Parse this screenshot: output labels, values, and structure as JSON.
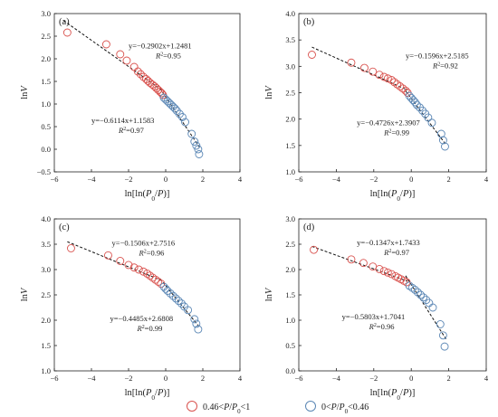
{
  "chart_data": [
    {
      "type": "scatter",
      "panel_label": "(a)",
      "xlabel_parts": [
        "ln[ln(",
        "P",
        "0",
        "/",
        "P",
        ")]"
      ],
      "ylabel_parts": [
        "ln",
        "V"
      ],
      "xlim": [
        -6,
        4
      ],
      "ylim": [
        -0.5,
        3.0
      ],
      "xticks": [
        -6,
        -4,
        -2,
        0,
        2,
        4
      ],
      "xtick_labels": [
        "−6",
        "−4",
        "−2",
        "0",
        "2",
        "4"
      ],
      "yticks": [
        -0.5,
        0.0,
        0.5,
        1.0,
        1.5,
        2.0,
        2.5,
        3.0
      ],
      "ytick_labels": [
        "−0.5",
        "0.0",
        "0.5",
        "1.0",
        "1.5",
        "2.0",
        "2.5",
        "3.0"
      ],
      "series": [
        {
          "name": "0.46<P/P0<1",
          "color": "#d9534f",
          "x": [
            -5.3,
            -3.2,
            -2.45,
            -2.1,
            -1.7,
            -1.5,
            -1.35,
            -1.2,
            -1.05,
            -0.95,
            -0.85,
            -0.72,
            -0.6,
            -0.5,
            -0.4,
            -0.3,
            -0.22,
            -0.15
          ],
          "y": [
            2.58,
            2.32,
            2.1,
            1.96,
            1.82,
            1.72,
            1.66,
            1.6,
            1.55,
            1.51,
            1.47,
            1.43,
            1.39,
            1.35,
            1.31,
            1.27,
            1.24,
            1.2
          ]
        },
        {
          "name": "0<P/P0<0.46",
          "color": "#5b87b5",
          "x": [
            -0.1,
            0.0,
            0.1,
            0.2,
            0.3,
            0.4,
            0.5,
            0.6,
            0.75,
            0.9,
            1.05,
            1.4,
            1.55,
            1.65,
            1.75,
            1.8
          ],
          "y": [
            1.14,
            1.1,
            1.06,
            1.02,
            0.98,
            0.94,
            0.9,
            0.85,
            0.78,
            0.71,
            0.6,
            0.34,
            0.17,
            0.08,
            0.0,
            -0.11
          ]
        }
      ],
      "fit_lines": [
        {
          "slope": -0.2902,
          "intercept": 1.2481,
          "x_range": [
            -5.5,
            -0.2
          ]
        },
        {
          "slope": -0.6114,
          "intercept": 1.1583,
          "x_range": [
            -0.3,
            1.82
          ]
        }
      ],
      "annotations": [
        {
          "eq": "y=−0.2902x+1.2481",
          "r2": "=0.95",
          "pos": [
            -2.0,
            2.23
          ]
        },
        {
          "eq": "y=−0.6114x+1.1583",
          "r2": "=0.97",
          "pos": [
            -4.0,
            0.58
          ]
        }
      ]
    },
    {
      "type": "scatter",
      "panel_label": "(b)",
      "xlabel_parts": [
        "ln[ln(",
        "P",
        "0",
        "/",
        "P",
        ")]"
      ],
      "ylabel_parts": [
        "ln",
        "V"
      ],
      "xlim": [
        -6,
        4
      ],
      "ylim": [
        1.0,
        4.0
      ],
      "xticks": [
        -6,
        -4,
        -2,
        0,
        2,
        4
      ],
      "xtick_labels": [
        "−6",
        "−4",
        "−2",
        "0",
        "2",
        "4"
      ],
      "yticks": [
        1.0,
        1.5,
        2.0,
        2.5,
        3.0,
        3.5,
        4.0
      ],
      "ytick_labels": [
        "1.0",
        "1.5",
        "2.0",
        "2.5",
        "3.0",
        "3.5",
        "4.0"
      ],
      "series": [
        {
          "name": "0.46<P/P0<1",
          "color": "#d9534f",
          "x": [
            -5.3,
            -3.2,
            -2.5,
            -2.05,
            -1.7,
            -1.45,
            -1.25,
            -1.05,
            -0.9,
            -0.75,
            -0.6,
            -0.45,
            -0.3,
            -0.2
          ],
          "y": [
            3.22,
            3.07,
            2.97,
            2.9,
            2.84,
            2.8,
            2.77,
            2.74,
            2.7,
            2.66,
            2.62,
            2.58,
            2.54,
            2.5
          ]
        },
        {
          "name": "0<P/P0<0.46",
          "color": "#5b87b5",
          "x": [
            -0.1,
            0.0,
            0.1,
            0.2,
            0.3,
            0.45,
            0.6,
            0.75,
            0.9,
            1.1,
            1.6,
            1.7,
            1.8
          ],
          "y": [
            2.44,
            2.4,
            2.36,
            2.32,
            2.27,
            2.22,
            2.16,
            2.1,
            2.03,
            1.93,
            1.72,
            1.6,
            1.48
          ]
        }
      ],
      "fit_lines": [
        {
          "slope": -0.1596,
          "intercept": 2.5185,
          "x_range": [
            -5.3,
            -0.2
          ]
        },
        {
          "slope": -0.4726,
          "intercept": 2.3907,
          "x_range": [
            -0.3,
            1.85
          ]
        }
      ],
      "annotations": [
        {
          "eq": "y=−0.1596x+2.5185",
          "r2": "=0.92",
          "pos": [
            -0.3,
            3.15
          ]
        },
        {
          "eq": "y=−0.4726x+2.3907",
          "r2": "=0.99",
          "pos": [
            -2.9,
            1.88
          ]
        }
      ]
    },
    {
      "type": "scatter",
      "panel_label": "(c)",
      "xlabel_parts": [
        "ln[ln(",
        "P",
        "0",
        "/",
        "P",
        ")]"
      ],
      "ylabel_parts": [
        "ln",
        "V"
      ],
      "xlim": [
        -6,
        4
      ],
      "ylim": [
        1.0,
        4.0
      ],
      "xticks": [
        -6,
        -4,
        -2,
        0,
        2,
        4
      ],
      "xtick_labels": [
        "−6",
        "−4",
        "−2",
        "0",
        "2",
        "4"
      ],
      "yticks": [
        1.0,
        1.5,
        2.0,
        2.5,
        3.0,
        3.5,
        4.0
      ],
      "ytick_labels": [
        "1.0",
        "1.5",
        "2.0",
        "2.5",
        "3.0",
        "3.5",
        "4.0"
      ],
      "series": [
        {
          "name": "0.46<P/P0<1",
          "color": "#d9534f",
          "x": [
            -5.1,
            -3.1,
            -2.45,
            -2.0,
            -1.7,
            -1.45,
            -1.2,
            -1.0,
            -0.85,
            -0.7,
            -0.55,
            -0.4,
            -0.25
          ],
          "y": [
            3.42,
            3.28,
            3.17,
            3.09,
            3.04,
            3.0,
            2.96,
            2.92,
            2.88,
            2.84,
            2.8,
            2.76,
            2.72
          ]
        },
        {
          "name": "0<P/P0<0.46",
          "color": "#5b87b5",
          "x": [
            -0.1,
            0.0,
            0.1,
            0.25,
            0.4,
            0.55,
            0.7,
            0.85,
            1.0,
            1.2,
            1.55,
            1.65,
            1.75
          ],
          "y": [
            2.66,
            2.62,
            2.58,
            2.53,
            2.48,
            2.43,
            2.38,
            2.33,
            2.27,
            2.2,
            2.02,
            1.93,
            1.82
          ]
        }
      ],
      "fit_lines": [
        {
          "slope": -0.1506,
          "intercept": 2.7516,
          "x_range": [
            -5.3,
            -0.2
          ]
        },
        {
          "slope": -0.4485,
          "intercept": 2.6808,
          "x_range": [
            -0.3,
            1.85
          ]
        }
      ],
      "annotations": [
        {
          "eq": "y=−0.1506x+2.7516",
          "r2": "=0.96",
          "pos": [
            -2.9,
            3.47
          ]
        },
        {
          "eq": "y=−0.4485x+2.6808",
          "r2": "=0.99",
          "pos": [
            -3.0,
            1.98
          ]
        }
      ]
    },
    {
      "type": "scatter",
      "panel_label": "(d)",
      "xlabel_parts": [
        "ln[ln(",
        "P",
        "0",
        "/",
        "P",
        ")]"
      ],
      "ylabel_parts": [
        "ln",
        "V"
      ],
      "xlim": [
        -6,
        4
      ],
      "ylim": [
        0.0,
        3.0
      ],
      "xticks": [
        -6,
        -4,
        -2,
        0,
        2,
        4
      ],
      "xtick_labels": [
        "−6",
        "−4",
        "−2",
        "0",
        "2",
        "4"
      ],
      "yticks": [
        0.0,
        0.5,
        1.0,
        1.5,
        2.0,
        2.5,
        3.0
      ],
      "ytick_labels": [
        "0.0",
        "0.5",
        "1.0",
        "1.5",
        "2.0",
        "2.5",
        "3.0"
      ],
      "series": [
        {
          "name": "0.46<P/P0<1",
          "color": "#d9534f",
          "x": [
            -5.2,
            -3.2,
            -2.55,
            -2.05,
            -1.7,
            -1.45,
            -1.25,
            -1.05,
            -0.85,
            -0.7,
            -0.55,
            -0.4,
            -0.25
          ],
          "y": [
            2.39,
            2.2,
            2.13,
            2.06,
            2.01,
            1.97,
            1.94,
            1.91,
            1.87,
            1.84,
            1.81,
            1.78,
            1.75
          ]
        },
        {
          "name": "0<P/P0<0.46",
          "color": "#5b87b5",
          "x": [
            -0.1,
            0.05,
            0.2,
            0.35,
            0.5,
            0.65,
            0.8,
            0.95,
            1.15,
            1.55,
            1.7,
            1.78
          ],
          "y": [
            1.68,
            1.64,
            1.6,
            1.55,
            1.5,
            1.45,
            1.4,
            1.34,
            1.25,
            0.92,
            0.7,
            0.48
          ]
        }
      ],
      "fit_lines": [
        {
          "slope": -0.1347,
          "intercept": 1.7433,
          "x_range": [
            -5.3,
            -0.2
          ]
        },
        {
          "slope": -0.5803,
          "intercept": 1.7041,
          "x_range": [
            -0.3,
            1.85
          ]
        }
      ],
      "annotations": [
        {
          "eq": "y=−0.1347x+1.7433",
          "r2": "=0.97",
          "pos": [
            -2.9,
            2.48
          ]
        },
        {
          "eq": "y=−0.5803x+1.7041",
          "r2": "=0.96",
          "pos": [
            -3.7,
            1.02
          ]
        }
      ]
    }
  ],
  "legend": {
    "items": [
      {
        "label_parts": [
          "0.46<",
          "P",
          "/",
          "P",
          "0",
          "<1"
        ],
        "color": "#d9534f"
      },
      {
        "label_parts": [
          "0<",
          "P",
          "/",
          "P",
          "0",
          "<0.46"
        ],
        "color": "#5b87b5"
      }
    ]
  },
  "style": {
    "red": "#d9534f",
    "blue": "#5b87b5",
    "axis": "#222222"
  }
}
